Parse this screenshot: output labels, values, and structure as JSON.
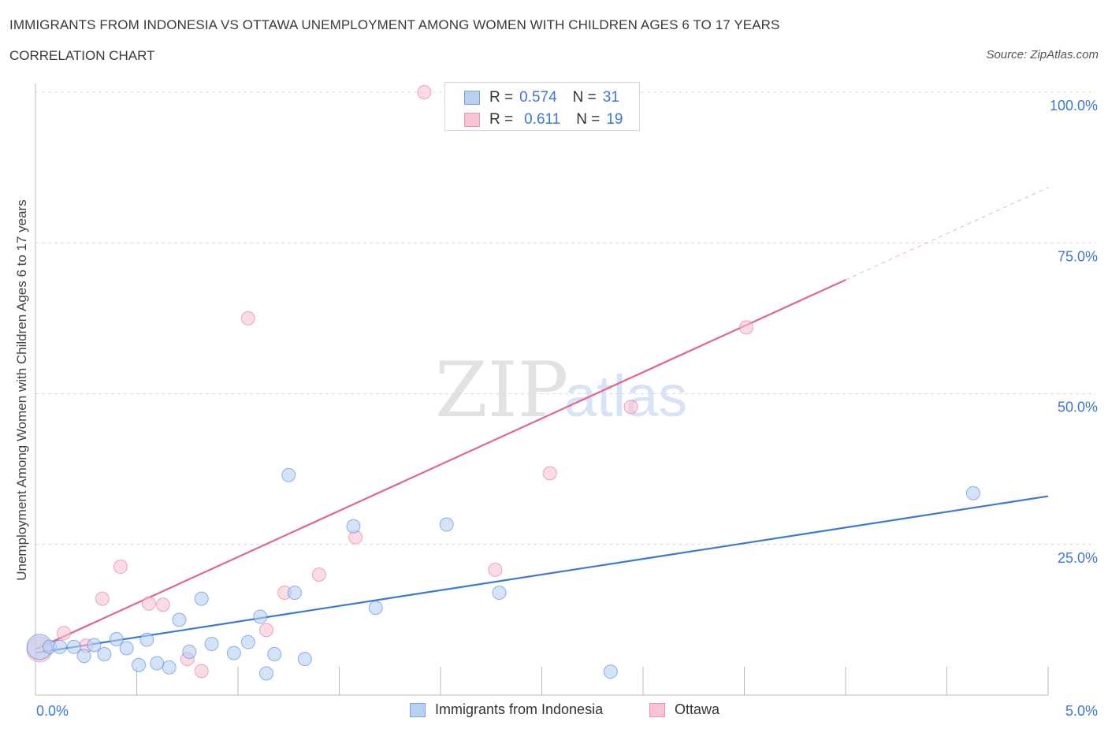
{
  "title": "IMMIGRANTS FROM INDONESIA VS OTTAWA UNEMPLOYMENT AMONG WOMEN WITH CHILDREN AGES 6 TO 17 YEARS",
  "subtitle": "CORRELATION CHART",
  "source": "Source: ZipAtlas.com",
  "watermark": {
    "zip": "ZIP",
    "atlas": "atlas"
  },
  "colors": {
    "blue": "#3b78d8",
    "blue_fill": "#b8d1f3",
    "pink": "#e2648f",
    "pink_fill": "#f8c3d2",
    "grid": "#dcdcdc",
    "tick_label": "#3b78d8"
  },
  "legend_top": [
    {
      "r_label": "R =",
      "r_value": "0.574",
      "n_label": "N =",
      "n_value": "31"
    },
    {
      "r_label": "R =",
      "r_value": "0.611",
      "n_label": "N =",
      "n_value": "19"
    }
  ],
  "chart_data": {
    "type": "scatter",
    "title": "IMMIGRANTS FROM INDONESIA VS OTTAWA UNEMPLOYMENT AMONG WOMEN WITH CHILDREN AGES 6 TO 17 YEARS",
    "xlabel": "",
    "ylabel": "Unemployment Among Women with Children Ages 6 to 17 years",
    "xlim": [
      0,
      5
    ],
    "ylim": [
      0,
      100
    ],
    "x_tick_labels": [
      "0.0%",
      "5.0%"
    ],
    "y_tick_labels": [
      "100.0%",
      "75.0%",
      "50.0%",
      "25.0%"
    ],
    "y_ticks": [
      100,
      75,
      50,
      25
    ],
    "grid": true,
    "legend_position": "bottom",
    "series": [
      {
        "name": "Immigrants from Indonesia",
        "color": "#3b78d8",
        "r": 0.574,
        "n": 31,
        "trend": {
          "x0": 0.0,
          "y0": 7.0,
          "x1": 5.0,
          "y1": 33.0,
          "solid_until": 5.0
        },
        "points": [
          {
            "x": 0.02,
            "y": 8.0,
            "big": true
          },
          {
            "x": 0.07,
            "y": 8.0
          },
          {
            "x": 0.12,
            "y": 8.0
          },
          {
            "x": 0.19,
            "y": 8.0
          },
          {
            "x": 0.24,
            "y": 6.5
          },
          {
            "x": 0.29,
            "y": 8.3
          },
          {
            "x": 0.34,
            "y": 6.8
          },
          {
            "x": 0.4,
            "y": 9.3
          },
          {
            "x": 0.45,
            "y": 7.8
          },
          {
            "x": 0.51,
            "y": 5.0
          },
          {
            "x": 0.55,
            "y": 9.2
          },
          {
            "x": 0.6,
            "y": 5.3
          },
          {
            "x": 0.66,
            "y": 4.6
          },
          {
            "x": 0.71,
            "y": 12.5
          },
          {
            "x": 0.76,
            "y": 7.2
          },
          {
            "x": 0.82,
            "y": 16.0
          },
          {
            "x": 0.87,
            "y": 8.5
          },
          {
            "x": 0.98,
            "y": 7.0
          },
          {
            "x": 1.05,
            "y": 8.8
          },
          {
            "x": 1.11,
            "y": 13.0
          },
          {
            "x": 1.14,
            "y": 3.6
          },
          {
            "x": 1.18,
            "y": 6.8
          },
          {
            "x": 1.25,
            "y": 36.5
          },
          {
            "x": 1.28,
            "y": 17.0
          },
          {
            "x": 1.33,
            "y": 6.0
          },
          {
            "x": 1.57,
            "y": 28.0
          },
          {
            "x": 1.68,
            "y": 14.5
          },
          {
            "x": 2.03,
            "y": 28.3
          },
          {
            "x": 2.29,
            "y": 17.0
          },
          {
            "x": 2.84,
            "y": 3.9
          },
          {
            "x": 4.63,
            "y": 33.5
          }
        ]
      },
      {
        "name": "Ottawa",
        "color": "#e2648f",
        "r": 0.611,
        "n": 19,
        "trend": {
          "x0": 0.0,
          "y0": 7.6,
          "x1": 5.0,
          "y1": 84.2,
          "solid_until": 4.0
        },
        "points": [
          {
            "x": 0.02,
            "y": 7.6,
            "big": true
          },
          {
            "x": 0.14,
            "y": 10.3
          },
          {
            "x": 0.25,
            "y": 8.2
          },
          {
            "x": 0.33,
            "y": 16.0
          },
          {
            "x": 0.42,
            "y": 21.3
          },
          {
            "x": 0.56,
            "y": 15.2
          },
          {
            "x": 0.63,
            "y": 15.0
          },
          {
            "x": 0.75,
            "y": 6.0
          },
          {
            "x": 0.82,
            "y": 4.0
          },
          {
            "x": 1.05,
            "y": 62.5
          },
          {
            "x": 1.14,
            "y": 10.8
          },
          {
            "x": 1.23,
            "y": 17.0
          },
          {
            "x": 1.4,
            "y": 20.0
          },
          {
            "x": 1.58,
            "y": 26.2
          },
          {
            "x": 1.92,
            "y": 100.0
          },
          {
            "x": 2.27,
            "y": 20.8
          },
          {
            "x": 2.54,
            "y": 36.8
          },
          {
            "x": 2.94,
            "y": 47.8
          },
          {
            "x": 3.51,
            "y": 61.0
          }
        ]
      }
    ]
  }
}
